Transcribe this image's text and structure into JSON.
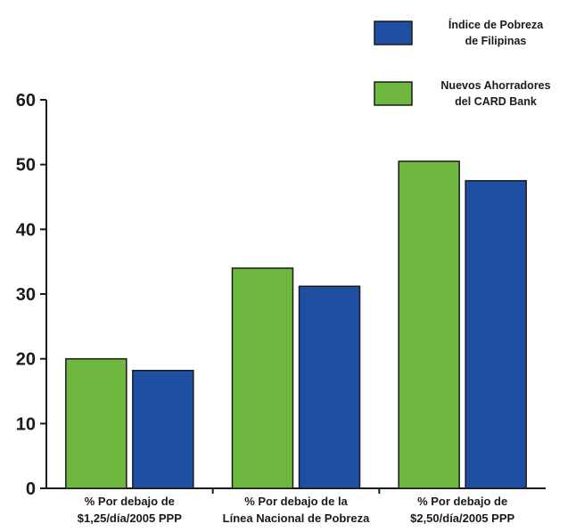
{
  "chart_data": {
    "type": "bar",
    "categories": [
      [
        "% Por debajo de",
        "$1,25/día/2005 PPP"
      ],
      [
        "% Por debajo de la",
        "Línea Nacional de Pobreza"
      ],
      [
        "% Por debajo de",
        "$2,50/día/2005 PPP"
      ]
    ],
    "series": [
      {
        "name": [
          "Nuevos Ahorradores",
          "del CARD Bank"
        ],
        "color": "#6fb83f",
        "values": [
          20,
          34,
          50.5
        ]
      },
      {
        "name": [
          "Índice de Pobreza",
          "de Filipinas"
        ],
        "color": "#1e4fa3",
        "values": [
          18.2,
          31.2,
          47.5
        ]
      }
    ],
    "legend_order": [
      1,
      0
    ],
    "legend_position": "top-right",
    "ylim": [
      0,
      60
    ],
    "yticks": [
      "0",
      "10",
      "20",
      "30",
      "40",
      "50",
      "60"
    ],
    "title": "",
    "xlabel": "",
    "ylabel": "",
    "grid": false
  }
}
